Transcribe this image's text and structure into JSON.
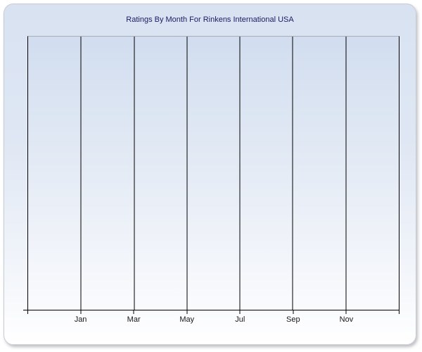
{
  "window": {
    "background": "#ffffff"
  },
  "chart": {
    "title": "Ratings By Month For Rinkens International USA",
    "colors": {
      "title": "#1b1b63",
      "frame_border": "#c8ccd3",
      "frame_bg_top": "#d8e2f1",
      "frame_bg_bottom": "#ffffff",
      "plot_bg_top": "#d1ddef",
      "plot_bg_bottom": "#fafbfd",
      "plot_top_border": "#a6adb8",
      "gridline": "#000000",
      "axis_label": "#17171c"
    }
  },
  "chart_data": {
    "type": "line",
    "title": "Ratings By Month For Rinkens International USA",
    "x_tick_labels": [
      "Jan",
      "Mar",
      "May",
      "Jul",
      "Sep",
      "Nov"
    ],
    "y_tick_labels": [],
    "series": [],
    "plot_is_empty": true,
    "gridlines": "vertical-only",
    "x_gridline_count": 8,
    "legend_position": "none"
  }
}
